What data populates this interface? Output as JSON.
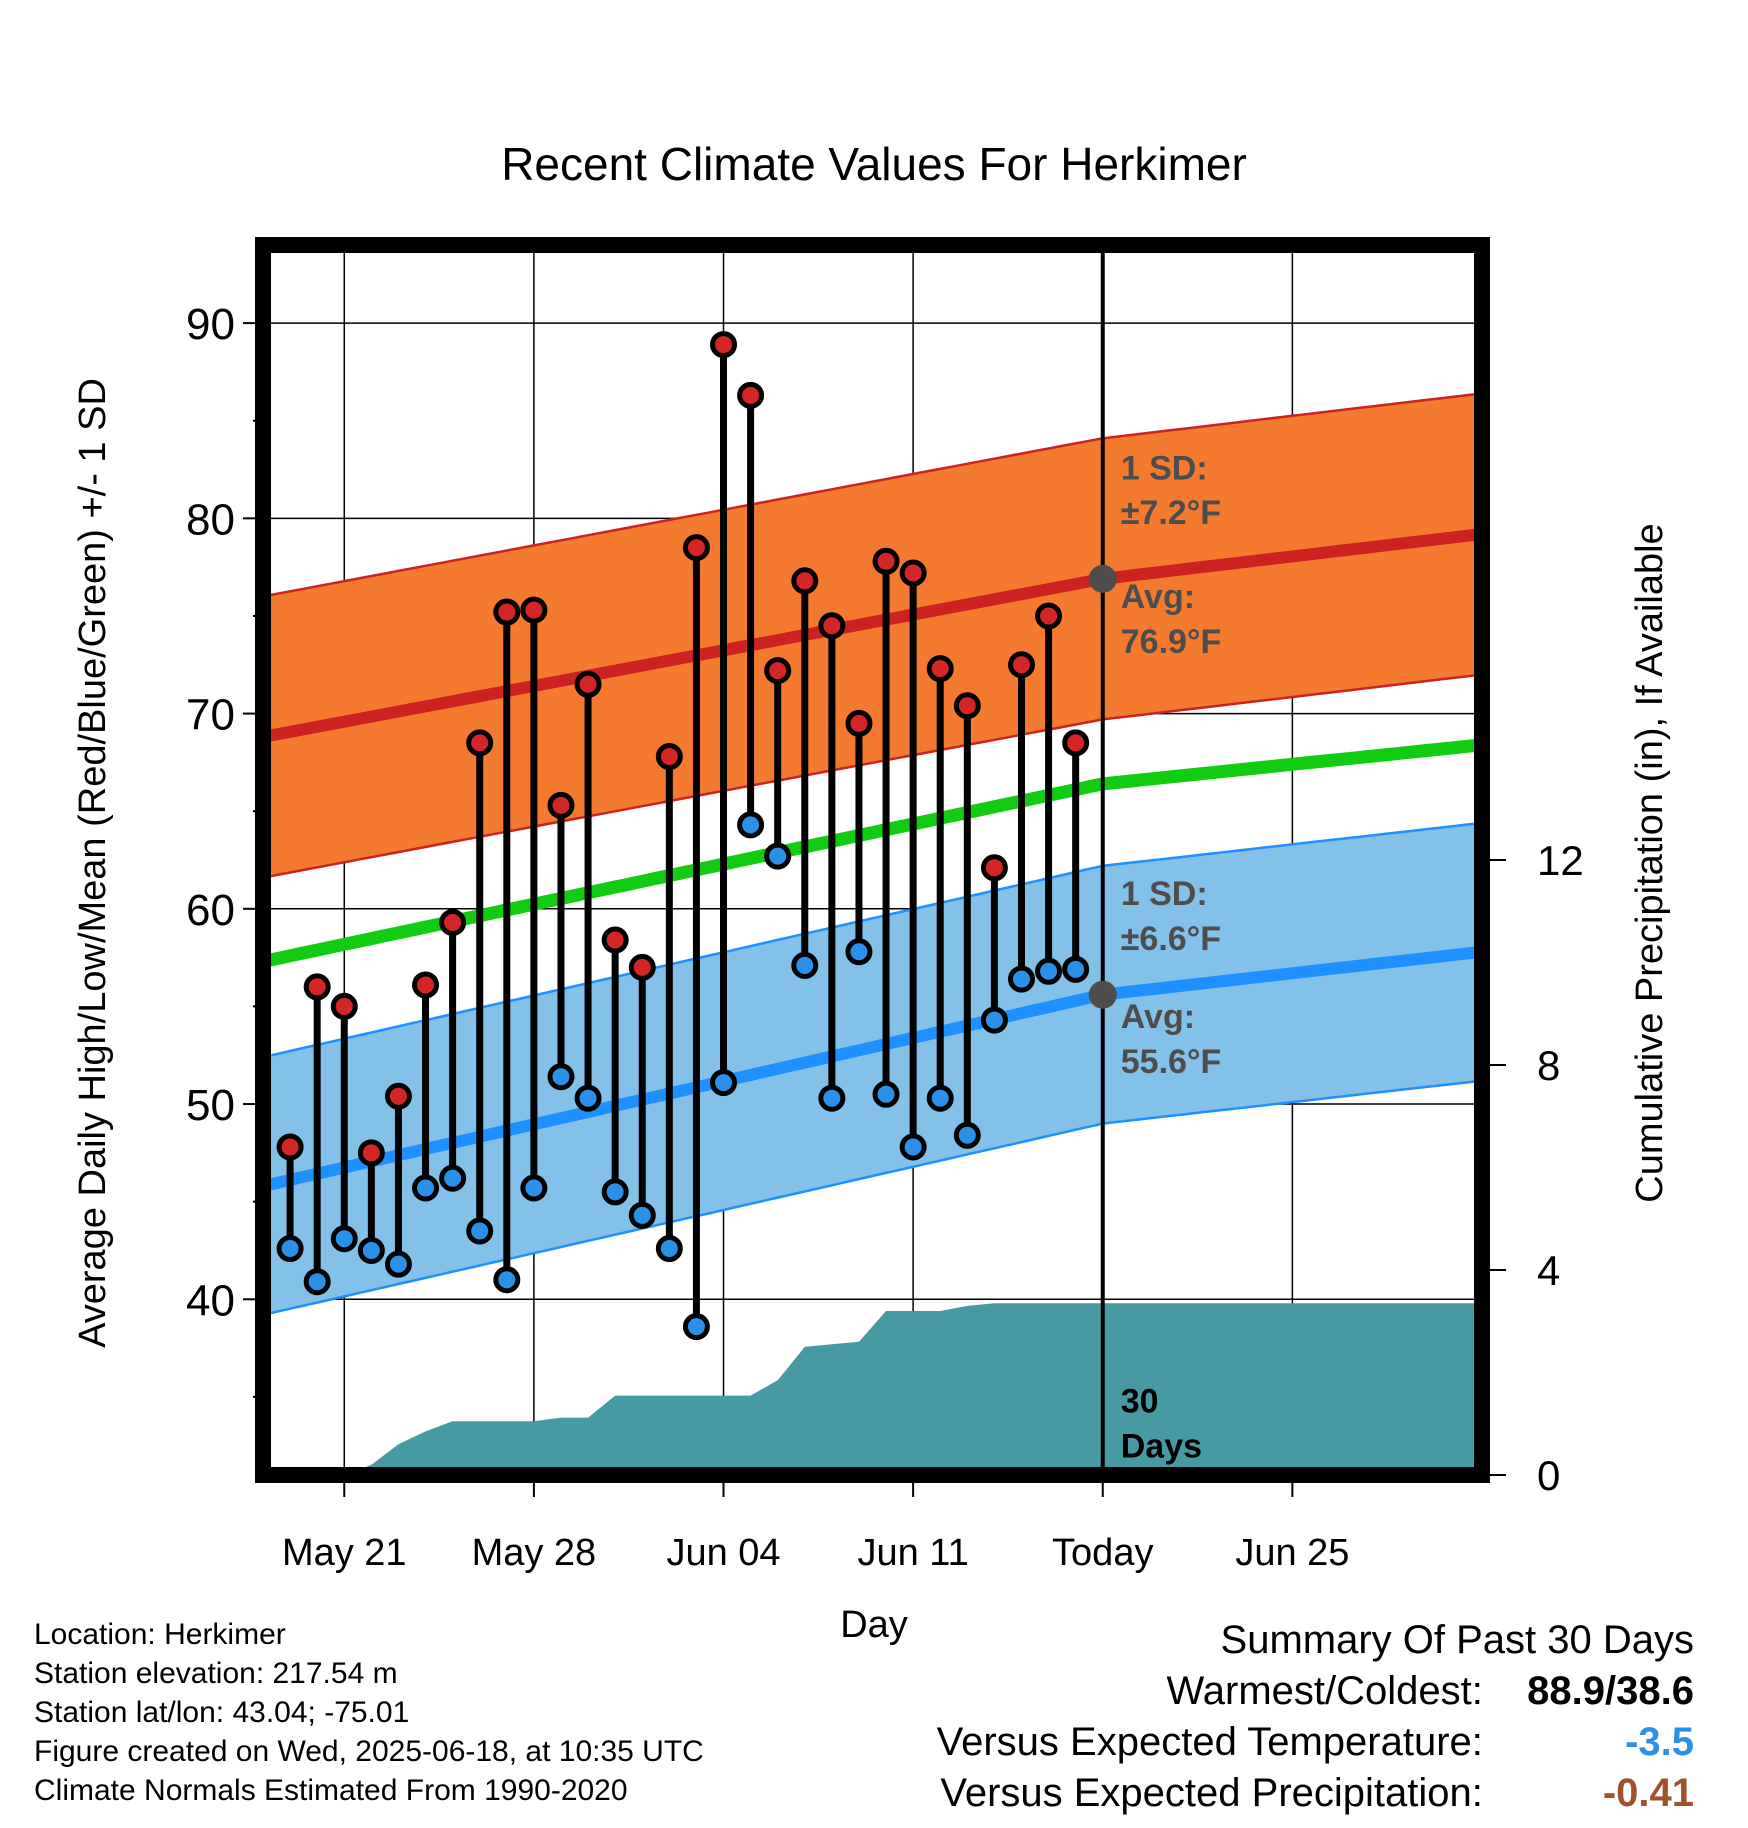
{
  "chart_data": {
    "type": "line",
    "title": "Recent Climate Values For Herkimer",
    "xlabel": "Day",
    "ylabel": "Average Daily High/Low/Mean (Red/Blue/Green) +/- 1 SD",
    "y2label": "Cumulative Precipitation (in), If Available",
    "x_range_days": [
      -1,
      44
    ],
    "ylim": [
      31,
      94
    ],
    "y2lim": [
      0,
      24
    ],
    "yticks": [
      40,
      50,
      60,
      70,
      80,
      90
    ],
    "y2ticks": [
      0,
      4,
      8,
      12
    ],
    "xticks": [
      {
        "day": 2,
        "label": "May 21"
      },
      {
        "day": 9,
        "label": "May 28"
      },
      {
        "day": 16,
        "label": "Jun 04"
      },
      {
        "day": 23,
        "label": "Jun 11"
      },
      {
        "day": 30,
        "label": "Today"
      },
      {
        "day": 37,
        "label": "Jun 25"
      }
    ],
    "today_day": 30,
    "days_label": [
      "30",
      "Days"
    ],
    "normals": {
      "days": [
        -1,
        30,
        44
      ],
      "high_avg": [
        68.8,
        76.9,
        79.2
      ],
      "high_sd": 7.2,
      "mean_avg": [
        57.3,
        66.4,
        68.4
      ],
      "low_avg": [
        45.8,
        55.6,
        57.8
      ],
      "low_sd": 6.6
    },
    "annotations": {
      "high_sd": [
        "1 SD:",
        "±7.2°F"
      ],
      "high_avg": [
        "Avg:",
        "76.9°F"
      ],
      "low_sd": [
        "1 SD:",
        "±6.6°F"
      ],
      "low_avg": [
        "Avg:",
        "55.6°F"
      ]
    },
    "daily": {
      "days": [
        0,
        1,
        2,
        3,
        4,
        5,
        6,
        7,
        8,
        9,
        10,
        11,
        12,
        13,
        14,
        15,
        16,
        17,
        18,
        19,
        20,
        21,
        22,
        23,
        24,
        25,
        26,
        27,
        28,
        29
      ],
      "highs": [
        47.8,
        56.0,
        55.0,
        47.5,
        50.4,
        56.1,
        59.3,
        68.5,
        75.2,
        75.3,
        65.3,
        71.5,
        58.4,
        57.0,
        67.8,
        78.5,
        88.9,
        86.3,
        72.2,
        76.8,
        74.5,
        69.5,
        77.8,
        77.2,
        72.3,
        70.4,
        62.1,
        72.5,
        75.0,
        68.5
      ],
      "lows": [
        42.6,
        40.9,
        43.1,
        42.5,
        41.8,
        45.7,
        46.2,
        43.5,
        41.0,
        45.7,
        51.4,
        50.3,
        45.5,
        44.3,
        42.6,
        38.6,
        51.1,
        64.3,
        62.7,
        57.1,
        50.3,
        57.8,
        50.5,
        47.8,
        50.3,
        48.4,
        54.3,
        56.4,
        56.8,
        56.9
      ]
    },
    "precip": {
      "days": [
        -1,
        0,
        1,
        2,
        3,
        4,
        5,
        6,
        7,
        8,
        9,
        10,
        11,
        12,
        13,
        14,
        15,
        16,
        17,
        18,
        19,
        20,
        21,
        22,
        23,
        24,
        25,
        26,
        27,
        28,
        29,
        30,
        44
      ],
      "values": [
        0,
        0,
        0,
        0,
        0.2,
        0.6,
        0.85,
        1.05,
        1.05,
        1.05,
        1.05,
        1.12,
        1.12,
        1.55,
        1.55,
        1.55,
        1.55,
        1.55,
        1.55,
        1.85,
        2.5,
        2.55,
        2.6,
        3.2,
        3.2,
        3.2,
        3.3,
        3.35,
        3.35,
        3.35,
        3.35,
        3.35,
        3.35
      ]
    },
    "colors": {
      "high_band": "#f47a30",
      "high_line": "#cc2222",
      "mean_line": "#11cc11",
      "low_band": "#83c1e9",
      "low_line": "#1e90ff",
      "precip": "#479aa3",
      "high_dot": "#d42626",
      "low_dot": "#2a90e8",
      "annotation": "#4d4d4d"
    }
  },
  "info": {
    "location": "Location: Herkimer",
    "elevation": "Station elevation: 217.54 m",
    "latlon": "Station lat/lon: 43.04; -75.01",
    "created": "Figure created on Wed, 2025-06-18, at 10:35 UTC",
    "normals": "Climate Normals Estimated From 1990-2020"
  },
  "summary": {
    "title": "Summary Of Past 30 Days",
    "warmest_label": "Warmest/Coldest:",
    "warmest_value": "88.9/38.6",
    "temp_label": "Versus Expected Temperature:",
    "temp_value": "-3.5",
    "temp_color": "#2a90e8",
    "precip_label": "Versus Expected Precipitation:",
    "precip_value": "-0.41",
    "precip_color": "#a0522d"
  }
}
